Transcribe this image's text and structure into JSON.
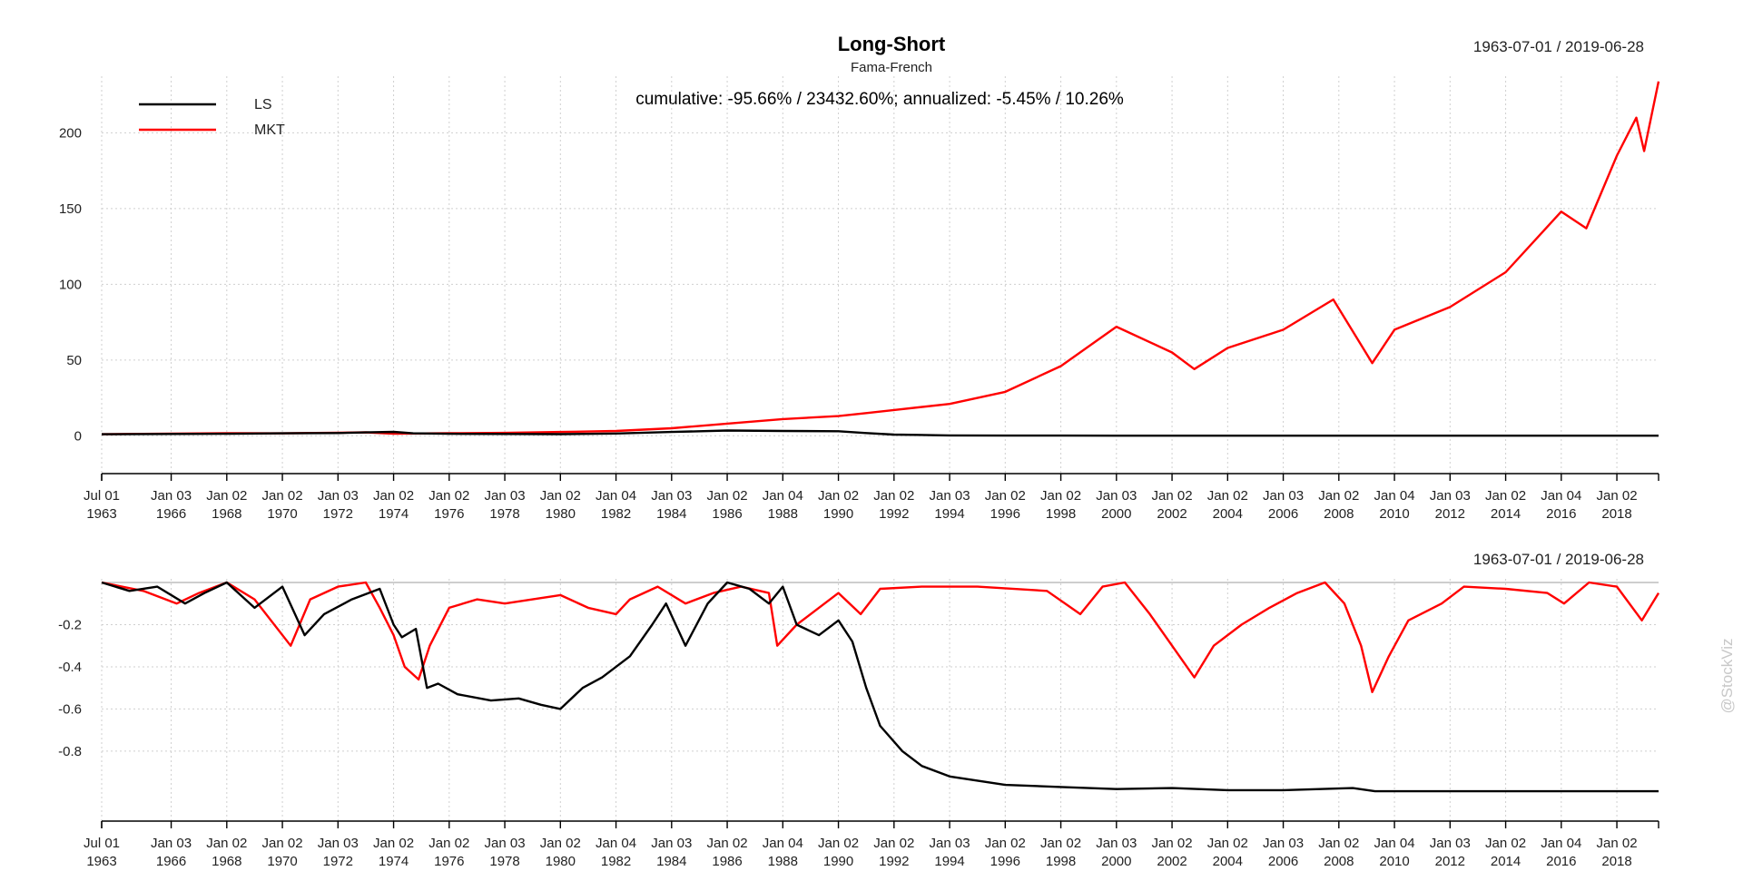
{
  "chart_data": [
    {
      "type": "line",
      "title": "Long-Short",
      "subtitle": "Fama-French",
      "date_range": "1963-07-01 / 2019-06-28",
      "annotation": "cumulative: -95.66% / 23432.60%; annualized: -5.45% / 10.26%",
      "legend_position": "top-left",
      "grid": true,
      "xlim": [
        1963.5,
        2019.5
      ],
      "ylim": [
        -13,
        235
      ],
      "yticks": [
        0,
        50,
        100,
        150,
        200
      ],
      "ytick_labels": [
        "0",
        "50",
        "100",
        "150",
        "200"
      ],
      "x": [
        1963.5,
        1966,
        1968,
        1970,
        1972,
        1973,
        1974,
        1974.7,
        1976,
        1978,
        1980,
        1982,
        1984,
        1986,
        1988,
        1990,
        1991,
        1992,
        1994,
        1996,
        1998,
        2000,
        2002,
        2002.8,
        2004,
        2006,
        2007.8,
        2009.2,
        2010,
        2012,
        2014,
        2016,
        2016.9,
        2018,
        2018.7,
        2018.98,
        2019.5
      ],
      "series": [
        {
          "name": "LS",
          "color": "#000000",
          "values": [
            1,
            1.2,
            1.3,
            1.6,
            1.8,
            2.2,
            2.6,
            1.6,
            1.3,
            1.2,
            1.1,
            1.5,
            2.5,
            3.5,
            3.2,
            3.0,
            1.8,
            0.8,
            0.25,
            0.12,
            0.1,
            0.08,
            0.06,
            0.06,
            0.05,
            0.05,
            0.06,
            0.04,
            0.04,
            0.04,
            0.04,
            0.04,
            0.04,
            0.043,
            0.043,
            0.043,
            0.043
          ]
        },
        {
          "name": "MKT",
          "color": "#ff0000",
          "values": [
            1,
            1.4,
            1.7,
            1.6,
            2.0,
            2.3,
            1.4,
            1.5,
            1.7,
            1.9,
            2.5,
            3.2,
            5,
            8,
            11,
            13,
            15,
            17,
            21,
            29,
            46,
            72,
            55,
            44,
            58,
            70,
            90,
            48,
            70,
            85,
            108,
            148,
            137,
            185,
            210,
            188,
            234
          ]
        }
      ],
      "xtick_labels": [
        {
          "x": 1963.5,
          "label": "Jul 01",
          "year": "1963"
        },
        {
          "x": 1966,
          "label": "Jan 03",
          "year": "1966"
        },
        {
          "x": 1968,
          "label": "Jan 02",
          "year": "1968"
        },
        {
          "x": 1970,
          "label": "Jan 02",
          "year": "1970"
        },
        {
          "x": 1972,
          "label": "Jan 03",
          "year": "1972"
        },
        {
          "x": 1974,
          "label": "Jan 02",
          "year": "1974"
        },
        {
          "x": 1976,
          "label": "Jan 02",
          "year": "1976"
        },
        {
          "x": 1978,
          "label": "Jan 03",
          "year": "1978"
        },
        {
          "x": 1980,
          "label": "Jan 02",
          "year": "1980"
        },
        {
          "x": 1982,
          "label": "Jan 04",
          "year": "1982"
        },
        {
          "x": 1984,
          "label": "Jan 03",
          "year": "1984"
        },
        {
          "x": 1986,
          "label": "Jan 02",
          "year": "1986"
        },
        {
          "x": 1988,
          "label": "Jan 04",
          "year": "1988"
        },
        {
          "x": 1990,
          "label": "Jan 02",
          "year": "1990"
        },
        {
          "x": 1992,
          "label": "Jan 02",
          "year": "1992"
        },
        {
          "x": 1994,
          "label": "Jan 03",
          "year": "1994"
        },
        {
          "x": 1996,
          "label": "Jan 02",
          "year": "1996"
        },
        {
          "x": 1998,
          "label": "Jan 02",
          "year": "1998"
        },
        {
          "x": 2000,
          "label": "Jan 03",
          "year": "2000"
        },
        {
          "x": 2002,
          "label": "Jan 02",
          "year": "2002"
        },
        {
          "x": 2004,
          "label": "Jan 02",
          "year": "2004"
        },
        {
          "x": 2006,
          "label": "Jan 03",
          "year": "2006"
        },
        {
          "x": 2008,
          "label": "Jan 02",
          "year": "2008"
        },
        {
          "x": 2010,
          "label": "Jan 04",
          "year": "2010"
        },
        {
          "x": 2012,
          "label": "Jan 03",
          "year": "2012"
        },
        {
          "x": 2014,
          "label": "Jan 02",
          "year": "2014"
        },
        {
          "x": 2016,
          "label": "Jan 04",
          "year": "2016"
        },
        {
          "x": 2018,
          "label": "Jan 02",
          "year": "2018"
        }
      ]
    },
    {
      "type": "line",
      "date_range": "1963-07-01 / 2019-06-28",
      "grid": true,
      "xlim": [
        1963.5,
        2019.5
      ],
      "ylim": [
        -1.05,
        0
      ],
      "yticks": [
        -0.2,
        -0.4,
        -0.6,
        -0.8
      ],
      "ytick_labels": [
        "-0.2",
        "-0.4",
        "-0.6",
        "-0.8"
      ],
      "series": [
        {
          "name": "LS",
          "color": "#000000",
          "x": [
            1963.5,
            1964.5,
            1965.5,
            1966.5,
            1967.2,
            1968,
            1969,
            1970,
            1970.8,
            1971.5,
            1972.5,
            1973.5,
            1974,
            1974.3,
            1974.8,
            1975.2,
            1975.6,
            1976.3,
            1977.5,
            1978.5,
            1979.3,
            1980,
            1980.8,
            1981.5,
            1982.5,
            1983.3,
            1983.8,
            1984.5,
            1985.3,
            1986,
            1986.8,
            1987.5,
            1988,
            1988.5,
            1989.3,
            1990,
            1990.5,
            1991,
            1991.5,
            1992.3,
            1993,
            1994,
            1996,
            1998,
            2000,
            2002,
            2004,
            2006,
            2008.5,
            2009.3,
            2019.5
          ],
          "values": [
            0,
            -0.04,
            -0.02,
            -0.1,
            -0.05,
            0,
            -0.12,
            -0.02,
            -0.25,
            -0.15,
            -0.08,
            -0.03,
            -0.2,
            -0.26,
            -0.22,
            -0.5,
            -0.48,
            -0.53,
            -0.56,
            -0.55,
            -0.58,
            -0.6,
            -0.5,
            -0.45,
            -0.35,
            -0.2,
            -0.1,
            -0.3,
            -0.1,
            0,
            -0.03,
            -0.1,
            -0.02,
            -0.2,
            -0.25,
            -0.18,
            -0.28,
            -0.5,
            -0.68,
            -0.8,
            -0.87,
            -0.92,
            -0.96,
            -0.97,
            -0.98,
            -0.975,
            -0.985,
            -0.985,
            -0.975,
            -0.99,
            -0.99
          ]
        },
        {
          "name": "MKT",
          "color": "#ff0000",
          "x": [
            1963.5,
            1965,
            1966.2,
            1967,
            1968,
            1969,
            1970.3,
            1971,
            1972,
            1973,
            1973.5,
            1974,
            1974.4,
            1974.9,
            1975.3,
            1976,
            1977,
            1978,
            1979,
            1980,
            1981,
            1982,
            1982.5,
            1983.5,
            1984.5,
            1985.5,
            1986.5,
            1987.5,
            1987.8,
            1988.5,
            1989.5,
            1990,
            1990.8,
            1991.5,
            1993,
            1995,
            1997.5,
            1998.7,
            1999.5,
            2000.3,
            2001.2,
            2002,
            2002.8,
            2003.5,
            2004.5,
            2005.5,
            2006.5,
            2007.5,
            2008.2,
            2008.8,
            2009.2,
            2009.8,
            2010.5,
            2011.7,
            2012.5,
            2014,
            2015.5,
            2016.1,
            2017,
            2018,
            2018.9,
            2019.5
          ],
          "values": [
            0,
            -0.04,
            -0.1,
            -0.05,
            0,
            -0.08,
            -0.3,
            -0.08,
            -0.02,
            0,
            -0.12,
            -0.25,
            -0.4,
            -0.46,
            -0.3,
            -0.12,
            -0.08,
            -0.1,
            -0.08,
            -0.06,
            -0.12,
            -0.15,
            -0.08,
            -0.02,
            -0.1,
            -0.05,
            -0.02,
            -0.05,
            -0.3,
            -0.2,
            -0.1,
            -0.05,
            -0.15,
            -0.03,
            -0.02,
            -0.02,
            -0.04,
            -0.15,
            -0.02,
            0,
            -0.15,
            -0.3,
            -0.45,
            -0.3,
            -0.2,
            -0.12,
            -0.05,
            0,
            -0.1,
            -0.3,
            -0.52,
            -0.35,
            -0.18,
            -0.1,
            -0.02,
            -0.03,
            -0.05,
            -0.1,
            0,
            -0.02,
            -0.18,
            -0.05
          ]
        }
      ]
    }
  ],
  "watermark": "@StockViz"
}
